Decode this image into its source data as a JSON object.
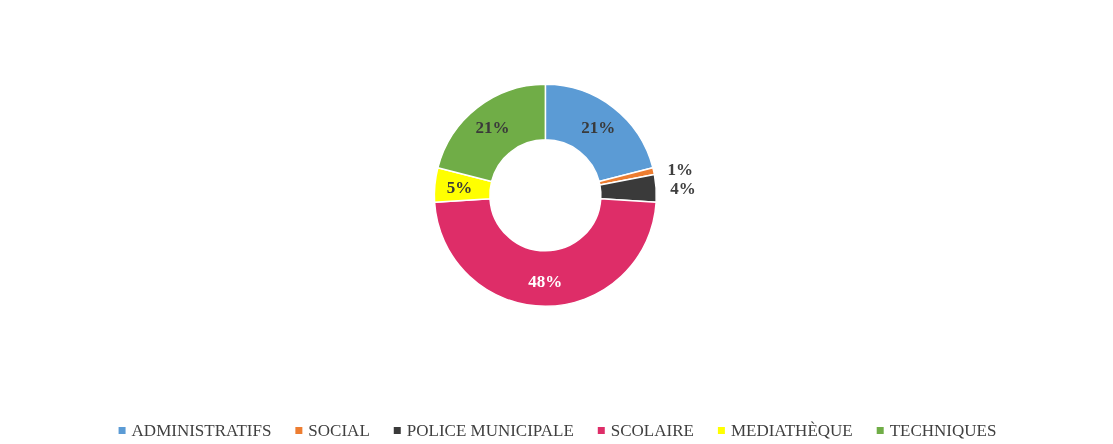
{
  "chart_data": {
    "type": "donut",
    "categories": [
      "ADMINISTRATIFS",
      "SOCIAL",
      "POLICE MUNICIPALE",
      "SCOLAIRE",
      "MEDIATHÈQUE",
      "TECHNIQUES"
    ],
    "values": [
      21,
      1,
      4,
      48,
      5,
      21
    ],
    "colors": [
      "#5b9bd5",
      "#ed7d31",
      "#3a3a3a",
      "#de2d68",
      "#ffff00",
      "#70ad47"
    ],
    "value_labels": [
      "21%",
      "1%",
      "4%",
      "48%",
      "5%",
      "21%"
    ],
    "legend": "bottom"
  }
}
